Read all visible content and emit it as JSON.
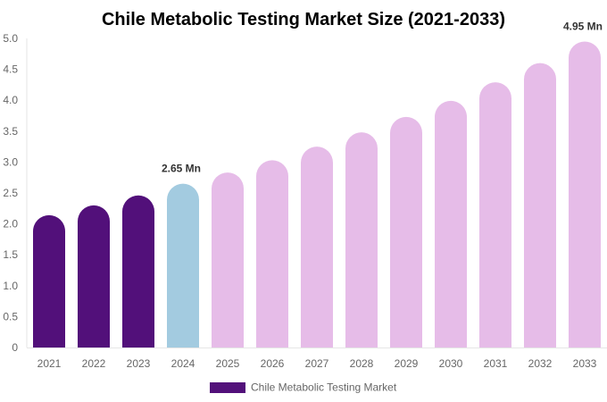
{
  "chart_data": {
    "type": "bar",
    "title": "Chile Metabolic Testing Market Size (2021-2033)",
    "xlabel": "",
    "ylabel": "",
    "ylim": [
      0,
      5.0
    ],
    "yticks": [
      "0",
      "0.5",
      "1.0",
      "1.5",
      "2.0",
      "2.5",
      "3.0",
      "3.5",
      "4.0",
      "4.5",
      "5.0"
    ],
    "categories": [
      "2021",
      "2022",
      "2023",
      "2024",
      "2025",
      "2026",
      "2027",
      "2028",
      "2029",
      "2030",
      "2031",
      "2032",
      "2033"
    ],
    "series": [
      {
        "name": "Chile Metabolic Testing Market",
        "values": [
          2.14,
          2.3,
          2.46,
          2.65,
          2.83,
          3.03,
          3.25,
          3.48,
          3.73,
          3.99,
          4.29,
          4.6,
          4.95
        ]
      }
    ],
    "bar_colors": [
      "#52107a",
      "#52107a",
      "#52107a",
      "#a3cbe0",
      "#e6bce8",
      "#e6bce8",
      "#e6bce8",
      "#e6bce8",
      "#e6bce8",
      "#e6bce8",
      "#e6bce8",
      "#e6bce8",
      "#e6bce8"
    ],
    "data_labels": [
      {
        "index": 3,
        "text": "2.65 Mn"
      },
      {
        "index": 12,
        "text": "4.95 Mn"
      }
    ],
    "legend": {
      "label": "Chile Metabolic Testing Market",
      "color": "#52107a",
      "position": "bottom"
    },
    "grid": false
  }
}
